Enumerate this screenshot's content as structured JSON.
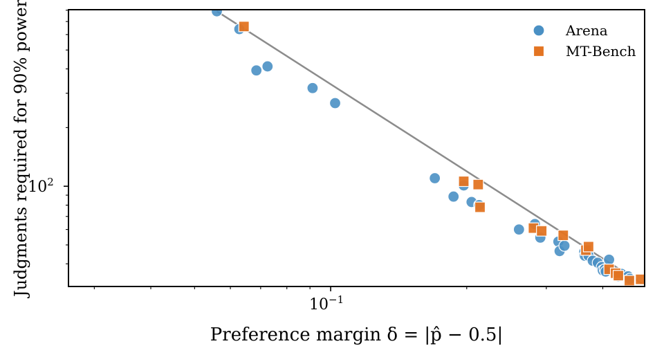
{
  "chart_data": {
    "type": "scatter",
    "title": "",
    "xlabel": "Preference margin δ = |p̂ − 0.5|",
    "ylabel": "Judgments required for 90% power",
    "x_scale": "log",
    "y_scale": "log",
    "xlim": [
      0.0263,
      0.495
    ],
    "ylim": [
      30.6,
      805
    ],
    "x_major_ticks": [
      {
        "value": 0.1,
        "base": "10",
        "exp": "−1"
      }
    ],
    "y_major_ticks": [
      {
        "value": 100,
        "base": "10",
        "exp": "2"
      }
    ],
    "legend_position": "top-right",
    "colors": {
      "Arena": "#4a90c4",
      "MT-Bench": "#e37422",
      "fit": "#8c8c8c"
    },
    "fit_line": {
      "x": [
        0.056,
        0.49
      ],
      "y": [
        790,
        31.5
      ]
    },
    "series": [
      {
        "name": "Arena",
        "marker": "circle",
        "x": [
          0.056,
          0.0628,
          0.0685,
          0.0725,
          0.0912,
          0.1023,
          0.17,
          0.187,
          0.197,
          0.205,
          0.213,
          0.261,
          0.283,
          0.291,
          0.319,
          0.321,
          0.329,
          0.364,
          0.365,
          0.372,
          0.38,
          0.39,
          0.398,
          0.4,
          0.404,
          0.406,
          0.413,
          0.428,
          0.433,
          0.44,
          0.455,
          0.459
        ],
        "y": [
          790,
          640,
          393,
          412,
          319,
          267,
          110,
          88.5,
          101,
          83,
          80,
          60,
          64,
          54.5,
          52,
          46.5,
          49.5,
          46,
          44,
          44,
          41.5,
          40.5,
          38.5,
          37,
          37.5,
          36.5,
          42,
          35.5,
          34.5,
          35.5,
          34.5,
          33.5
        ]
      },
      {
        "name": "MT-Bench",
        "marker": "square",
        "x": [
          0.0643,
          0.197,
          0.212,
          0.214,
          0.281,
          0.293,
          0.327,
          0.367,
          0.372,
          0.413,
          0.427,
          0.433,
          0.458,
          0.485
        ],
        "y": [
          660,
          106,
          102,
          78,
          61,
          59,
          56,
          47,
          49,
          37.5,
          35.8,
          34.8,
          32.8,
          33.3
        ]
      }
    ]
  }
}
